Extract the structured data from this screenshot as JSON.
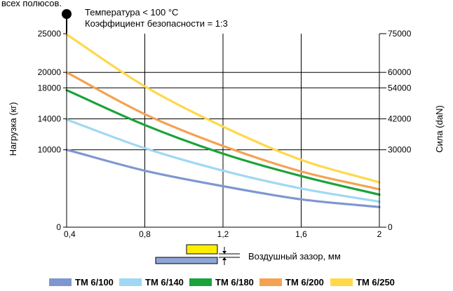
{
  "chart_data": {
    "type": "line",
    "top_caption": "всех полюсов.",
    "annotations": [
      "Температура < 100 °C",
      "Коэффициент безопасности = 1:3"
    ],
    "xlabel": "Воздушный зазор, мм",
    "ylabel": "Нагрузка (кг)",
    "y2label": "Сила (daN)",
    "x_ticks": [
      {
        "value": 0.4,
        "label": "0,4"
      },
      {
        "value": 0.8,
        "label": "0,8"
      },
      {
        "value": 1.2,
        "label": "1,2"
      },
      {
        "value": 1.6,
        "label": "1,6"
      },
      {
        "value": 2.0,
        "label": "2"
      }
    ],
    "y_ticks": [
      {
        "value": 0,
        "label": "0"
      },
      {
        "value": 10000,
        "label": "10000"
      },
      {
        "value": 14000,
        "label": "14000"
      },
      {
        "value": 18000,
        "label": "18000"
      },
      {
        "value": 20000,
        "label": "20000"
      },
      {
        "value": 25000,
        "label": "25000"
      }
    ],
    "y2_ticks": [
      {
        "value": 0,
        "label": "0"
      },
      {
        "value": 30000,
        "label": "30000"
      },
      {
        "value": 42000,
        "label": "42000"
      },
      {
        "value": 54000,
        "label": "54000"
      },
      {
        "value": 60000,
        "label": "60000"
      },
      {
        "value": 75000,
        "label": "75000"
      }
    ],
    "xlim": [
      0.4,
      2.0
    ],
    "ylim": [
      0,
      25000
    ],
    "y2lim": [
      0,
      75000
    ],
    "grid": true,
    "legend_position": "bottom",
    "x": [
      0.4,
      0.8,
      1.2,
      1.6,
      2.0
    ],
    "series": [
      {
        "name": "TM 6/100",
        "color": "#7f97d0",
        "values": [
          10000,
          7300,
          5300,
          3600,
          2600
        ]
      },
      {
        "name": "TM 6/140",
        "color": "#9fd8f2",
        "values": [
          13900,
          10200,
          7300,
          5000,
          3300
        ]
      },
      {
        "name": "TM 6/180",
        "color": "#1aa33a",
        "values": [
          17700,
          13200,
          9500,
          6600,
          4200
        ]
      },
      {
        "name": "TM 6/200",
        "color": "#f4a252",
        "values": [
          20000,
          14600,
          10500,
          7200,
          4900
        ]
      },
      {
        "name": "TM 6/250",
        "color": "#ffd84a",
        "values": [
          24900,
          18200,
          13000,
          8700,
          5800
        ]
      }
    ]
  }
}
